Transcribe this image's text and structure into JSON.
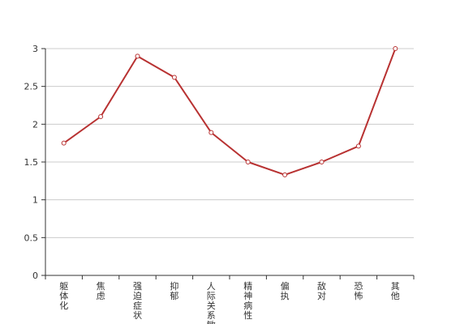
{
  "chart_data": {
    "type": "line",
    "categories": [
      "躯体化",
      "焦虑",
      "强迫症状",
      "抑郁",
      "人际关系敏感",
      "精神病性",
      "偏执",
      "敌对",
      "恐怖",
      "其他"
    ],
    "series": [
      {
        "values": [
          1.75,
          2.1,
          2.9,
          2.62,
          1.89,
          1.5,
          1.33,
          1.5,
          1.71,
          3.0
        ]
      }
    ],
    "title": "",
    "xlabel": "",
    "ylabel": "",
    "ylim": [
      0,
      3
    ],
    "yticks": [
      "0",
      "0.5",
      "1",
      "1.5",
      "2",
      "2.5",
      "3"
    ],
    "grid": true,
    "legend": "none",
    "colors": {
      "line": "#b83232",
      "grid": "#cccccc",
      "axis": "#333333",
      "marker_fill": "#ffffff"
    }
  }
}
